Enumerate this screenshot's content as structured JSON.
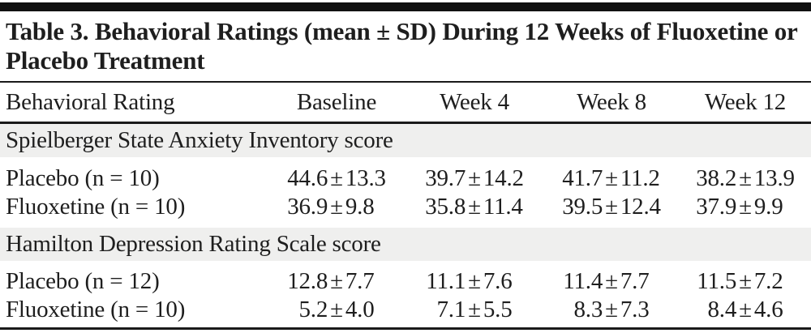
{
  "table": {
    "title": "Table 3. Behavioral Ratings (mean ± SD) During 12 Weeks of Fluoxetine or Placebo Treatment",
    "pm": "±",
    "columns": [
      "Behavioral Rating",
      "Baseline",
      "Week 4",
      "Week 8",
      "Week 12"
    ],
    "sections": [
      {
        "header": "Spielberger State Anxiety Inventory score",
        "rows": [
          {
            "label": "Placebo (n = 10)",
            "cells": [
              {
                "mean": "44.6",
                "sd": "13.3"
              },
              {
                "mean": "39.7",
                "sd": "14.2"
              },
              {
                "mean": "41.7",
                "sd": "11.2"
              },
              {
                "mean": "38.2",
                "sd": "13.9"
              }
            ]
          },
          {
            "label": "Fluoxetine (n = 10)",
            "cells": [
              {
                "mean": "36.9",
                "sd": "9.8"
              },
              {
                "mean": "35.8",
                "sd": "11.4"
              },
              {
                "mean": "39.5",
                "sd": "12.4"
              },
              {
                "mean": "37.9",
                "sd": "9.9"
              }
            ]
          }
        ]
      },
      {
        "header": "Hamilton Depression Rating Scale score",
        "rows": [
          {
            "label": "Placebo (n = 12)",
            "cells": [
              {
                "mean": "12.8",
                "sd": "7.7"
              },
              {
                "mean": "11.1",
                "sd": "7.6"
              },
              {
                "mean": "11.4",
                "sd": "7.7"
              },
              {
                "mean": "11.5",
                "sd": "7.2"
              }
            ]
          },
          {
            "label": "Fluoxetine (n = 10)",
            "cells": [
              {
                "mean": "5.2",
                "sd": "4.0"
              },
              {
                "mean": "7.1",
                "sd": "5.5"
              },
              {
                "mean": "8.3",
                "sd": "7.3"
              },
              {
                "mean": "8.4",
                "sd": "4.6"
              }
            ]
          }
        ]
      }
    ],
    "colors": {
      "text": "#1e1e1e",
      "rule": "#1a1a1a",
      "band_background": "#efefee",
      "top_bar": "#111111"
    }
  },
  "chart_data": {
    "type": "table",
    "title": "Table 3. Behavioral Ratings (mean ± SD) During 12 Weeks of Fluoxetine or Placebo Treatment",
    "columns": [
      "Behavioral Rating",
      "Baseline",
      "Week 4",
      "Week 8",
      "Week 12"
    ],
    "rows": [
      {
        "group": "Spielberger State Anxiety Inventory score",
        "label": "Placebo (n = 10)",
        "values": [
          "44.6 ± 13.3",
          "39.7 ± 14.2",
          "41.7 ± 11.2",
          "38.2 ± 13.9"
        ]
      },
      {
        "group": "Spielberger State Anxiety Inventory score",
        "label": "Fluoxetine (n = 10)",
        "values": [
          "36.9 ± 9.8",
          "35.8 ± 11.4",
          "39.5 ± 12.4",
          "37.9 ± 9.9"
        ]
      },
      {
        "group": "Hamilton Depression Rating Scale score",
        "label": "Placebo (n = 12)",
        "values": [
          "12.8 ± 7.7",
          "11.1 ± 7.6",
          "11.4 ± 7.7",
          "11.5 ± 7.2"
        ]
      },
      {
        "group": "Hamilton Depression Rating Scale score",
        "label": "Fluoxetine (n = 10)",
        "values": [
          "5.2 ± 4.0",
          "7.1 ± 5.5",
          "8.3 ± 7.3",
          "8.4 ± 4.6"
        ]
      }
    ]
  }
}
